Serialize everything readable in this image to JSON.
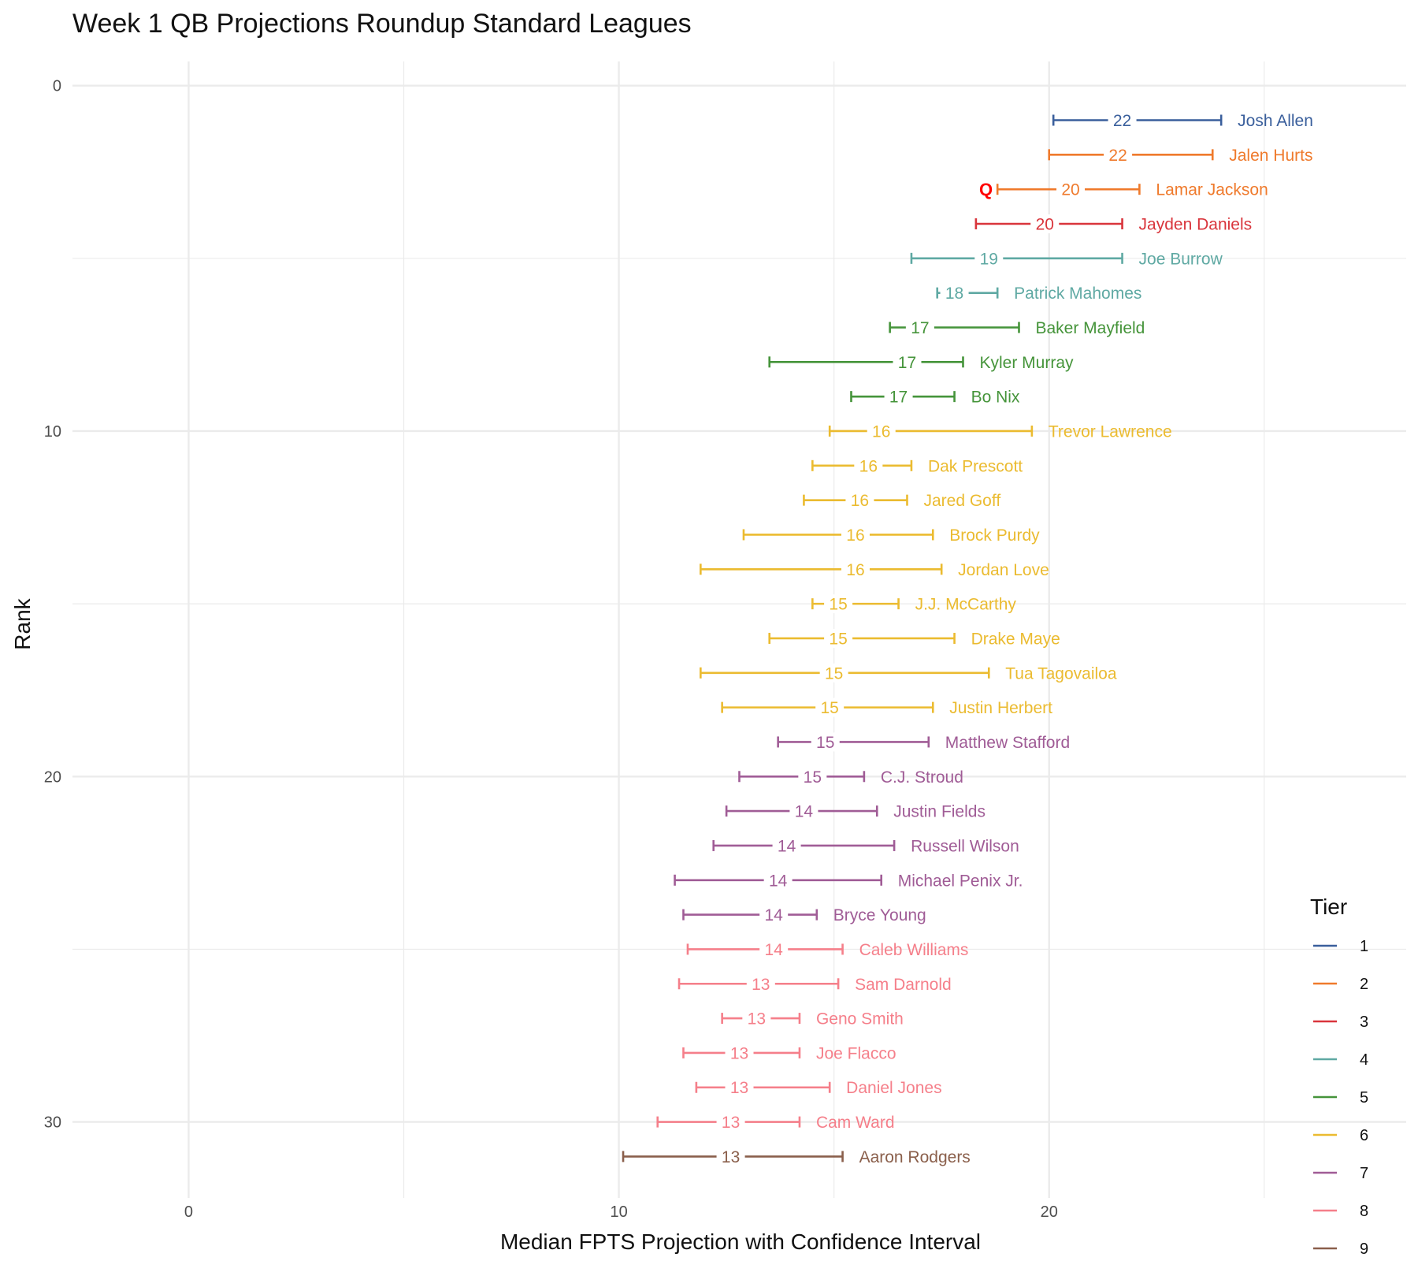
{
  "chart_data": {
    "type": "errorbar",
    "title": "Week 1 QB Projections Roundup Standard Leagues",
    "xlabel": "Median FPTS Projection with Confidence Interval",
    "ylabel": "Rank",
    "xlim": [
      -2.7,
      28.3
    ],
    "ylim": [
      32.2,
      -0.7
    ],
    "x_ticks": [
      0,
      10,
      20
    ],
    "y_ticks": [
      0,
      10,
      20,
      30
    ],
    "grid": true,
    "legend": {
      "title": "Tier",
      "position": "bottom-right",
      "entries": [
        {
          "label": "1",
          "color": "#3a5f9c"
        },
        {
          "label": "2",
          "color": "#ef7a2c"
        },
        {
          "label": "3",
          "color": "#d9353c"
        },
        {
          "label": "4",
          "color": "#5fa9a3"
        },
        {
          "label": "5",
          "color": "#45943a"
        },
        {
          "label": "6",
          "color": "#ebbb30"
        },
        {
          "label": "7",
          "color": "#a05c96"
        },
        {
          "label": "8",
          "color": "#f57f8a"
        },
        {
          "label": "9",
          "color": "#8a5f4b"
        }
      ]
    },
    "players": [
      {
        "rank": 1,
        "name": "Josh Allen",
        "tier": 1,
        "median": 22,
        "median_x": 21.7,
        "low": 20.1,
        "high": 24.0
      },
      {
        "rank": 2,
        "name": "Jalen Hurts",
        "tier": 2,
        "median": 22,
        "median_x": 21.6,
        "low": 20.0,
        "high": 23.8
      },
      {
        "rank": 3,
        "name": "Lamar Jackson",
        "tier": 2,
        "median": 20,
        "median_x": 20.5,
        "low": 18.8,
        "high": 22.1,
        "flag": "Q"
      },
      {
        "rank": 4,
        "name": "Jayden Daniels",
        "tier": 3,
        "median": 20,
        "median_x": 19.9,
        "low": 18.3,
        "high": 21.7
      },
      {
        "rank": 5,
        "name": "Joe Burrow",
        "tier": 4,
        "median": 19,
        "median_x": 18.6,
        "low": 16.8,
        "high": 21.7
      },
      {
        "rank": 6,
        "name": "Patrick Mahomes",
        "tier": 4,
        "median": 18,
        "median_x": 17.8,
        "low": 17.4,
        "high": 18.8
      },
      {
        "rank": 7,
        "name": "Baker Mayfield",
        "tier": 5,
        "median": 17,
        "median_x": 17.0,
        "low": 16.3,
        "high": 19.3
      },
      {
        "rank": 8,
        "name": "Kyler Murray",
        "tier": 5,
        "median": 17,
        "median_x": 16.7,
        "low": 13.5,
        "high": 18.0
      },
      {
        "rank": 9,
        "name": "Bo Nix",
        "tier": 5,
        "median": 17,
        "median_x": 16.5,
        "low": 15.4,
        "high": 17.8
      },
      {
        "rank": 10,
        "name": "Trevor Lawrence",
        "tier": 6,
        "median": 16,
        "median_x": 16.1,
        "low": 14.9,
        "high": 19.6
      },
      {
        "rank": 11,
        "name": "Dak Prescott",
        "tier": 6,
        "median": 16,
        "median_x": 15.8,
        "low": 14.5,
        "high": 16.8
      },
      {
        "rank": 12,
        "name": "Jared Goff",
        "tier": 6,
        "median": 16,
        "median_x": 15.6,
        "low": 14.3,
        "high": 16.7
      },
      {
        "rank": 13,
        "name": "Brock Purdy",
        "tier": 6,
        "median": 16,
        "median_x": 15.5,
        "low": 12.9,
        "high": 17.3
      },
      {
        "rank": 14,
        "name": "Jordan Love",
        "tier": 6,
        "median": 16,
        "median_x": 15.5,
        "low": 11.9,
        "high": 17.5
      },
      {
        "rank": 15,
        "name": "J.J. McCarthy",
        "tier": 6,
        "median": 15,
        "median_x": 15.1,
        "low": 14.5,
        "high": 16.5
      },
      {
        "rank": 16,
        "name": "Drake Maye",
        "tier": 6,
        "median": 15,
        "median_x": 15.1,
        "low": 13.5,
        "high": 17.8
      },
      {
        "rank": 17,
        "name": "Tua Tagovailoa",
        "tier": 6,
        "median": 15,
        "median_x": 15.0,
        "low": 11.9,
        "high": 18.6
      },
      {
        "rank": 18,
        "name": "Justin Herbert",
        "tier": 6,
        "median": 15,
        "median_x": 14.9,
        "low": 12.4,
        "high": 17.3
      },
      {
        "rank": 19,
        "name": "Matthew Stafford",
        "tier": 7,
        "median": 15,
        "median_x": 14.8,
        "low": 13.7,
        "high": 17.2
      },
      {
        "rank": 20,
        "name": "C.J. Stroud",
        "tier": 7,
        "median": 15,
        "median_x": 14.5,
        "low": 12.8,
        "high": 15.7
      },
      {
        "rank": 21,
        "name": "Justin Fields",
        "tier": 7,
        "median": 14,
        "median_x": 14.3,
        "low": 12.5,
        "high": 16.0
      },
      {
        "rank": 22,
        "name": "Russell Wilson",
        "tier": 7,
        "median": 14,
        "median_x": 13.9,
        "low": 12.2,
        "high": 16.4
      },
      {
        "rank": 23,
        "name": "Michael Penix Jr.",
        "tier": 7,
        "median": 14,
        "median_x": 13.7,
        "low": 11.3,
        "high": 16.1
      },
      {
        "rank": 24,
        "name": "Bryce Young",
        "tier": 7,
        "median": 14,
        "median_x": 13.6,
        "low": 11.5,
        "high": 14.6
      },
      {
        "rank": 25,
        "name": "Caleb Williams",
        "tier": 8,
        "median": 14,
        "median_x": 13.6,
        "low": 11.6,
        "high": 15.2
      },
      {
        "rank": 26,
        "name": "Sam Darnold",
        "tier": 8,
        "median": 13,
        "median_x": 13.3,
        "low": 11.4,
        "high": 15.1
      },
      {
        "rank": 27,
        "name": "Geno Smith",
        "tier": 8,
        "median": 13,
        "median_x": 13.2,
        "low": 12.4,
        "high": 14.2
      },
      {
        "rank": 28,
        "name": "Joe Flacco",
        "tier": 8,
        "median": 13,
        "median_x": 12.8,
        "low": 11.5,
        "high": 14.2
      },
      {
        "rank": 29,
        "name": "Daniel Jones",
        "tier": 8,
        "median": 13,
        "median_x": 12.8,
        "low": 11.8,
        "high": 14.9
      },
      {
        "rank": 30,
        "name": "Cam Ward",
        "tier": 8,
        "median": 13,
        "median_x": 12.6,
        "low": 10.9,
        "high": 14.2
      },
      {
        "rank": 31,
        "name": "Aaron Rodgers",
        "tier": 9,
        "median": 13,
        "median_x": 12.6,
        "low": 10.1,
        "high": 15.2
      }
    ]
  }
}
